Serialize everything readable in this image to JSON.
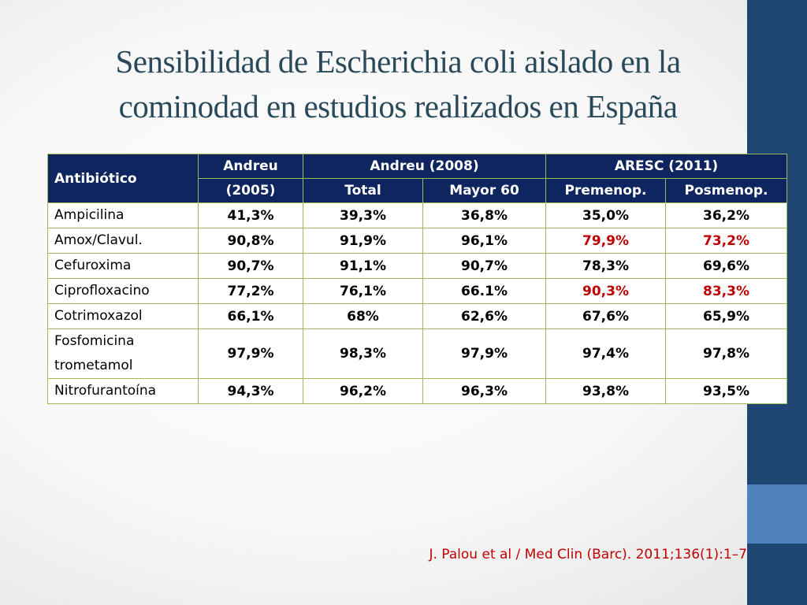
{
  "slide": {
    "title_line1": "Sensibilidad de Escherichia coli aislado en la",
    "title_line2": "cominodad en estudios realizados en España",
    "citation": "J. Palou et al / Med Clin (Barc). 2011;136(1):1–7",
    "colors": {
      "title": "#2a4a5c",
      "header_bg": "#0f2560",
      "border": "#9bbb59",
      "highlight": "#c00000",
      "side_bar": "#1f4673",
      "side_bar_accent": "#4f81bd"
    }
  },
  "table": {
    "header": {
      "antibiotico": "Antibiótico",
      "andreu2005_line1": "Andreu",
      "andreu2005_line2": "(2005)",
      "andreu2008": "Andreu (2008)",
      "aresc2011": "ARESC (2011)",
      "total": "Total",
      "mayor60": "Mayor 60",
      "premenop": "Premenop.",
      "posmenop": "Posmenop."
    },
    "rows": [
      {
        "name": "Ampicilina",
        "a2005": "41,3%",
        "total": "39,3%",
        "mayor60": "36,8%",
        "premenop": "35,0%",
        "posmenop": "36,2%"
      },
      {
        "name": "Amox/Clavul.",
        "a2005": "90,8%",
        "total": "91,9%",
        "mayor60": "96,1%",
        "premenop": "79,9%",
        "posmenop": "73,2%"
      },
      {
        "name": "Cefuroxima",
        "a2005": "90,7%",
        "total": "91,1%",
        "mayor60": "90,7%",
        "premenop": "78,3%",
        "posmenop": "69,6%"
      },
      {
        "name": "Ciprofloxacino",
        "a2005": "77,2%",
        "total": "76,1%",
        "mayor60": "66.1%",
        "premenop": "90,3%",
        "posmenop": "83,3%"
      },
      {
        "name": "Cotrimoxazol",
        "a2005": "66,1%",
        "total": "68%",
        "mayor60": "62,6%",
        "premenop": "67,6%",
        "posmenop": "65,9%"
      },
      {
        "name_line1": "Fosfomicina",
        "name_line2": "trometamol",
        "a2005": "97,9%",
        "total": "98,3%",
        "mayor60": "97,9%",
        "premenop": "97,4%",
        "posmenop": "97,8%"
      },
      {
        "name": "Nitrofurantoína",
        "a2005": "94,3%",
        "total": "96,2%",
        "mayor60": "96,3%",
        "premenop": "93,8%",
        "posmenop": "93,5%"
      }
    ]
  }
}
